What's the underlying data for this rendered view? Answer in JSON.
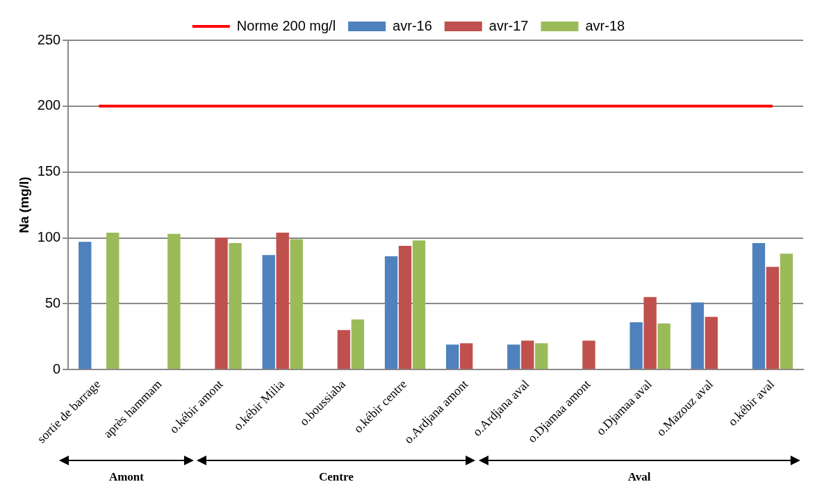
{
  "chart_data": {
    "type": "bar",
    "ylabel": "Na (mg/l)",
    "categories": [
      "sortie de barrage",
      "après hammam",
      "o.kébir amont",
      "o.kébir Milia",
      "o.boussiaba",
      "o.kébir centre",
      "o.Ardjana amont",
      "o.Ardjana aval",
      "o.Djamaa amont",
      "o.Djamaa aval",
      "o.Mazouz aval",
      "o.kébir aval"
    ],
    "series": [
      {
        "name": "avr-16",
        "color": "#4f81bd",
        "values": [
          97,
          null,
          null,
          87,
          null,
          86,
          19,
          19,
          null,
          36,
          51,
          96
        ]
      },
      {
        "name": "avr-17",
        "color": "#c0504d",
        "values": [
          null,
          null,
          100,
          104,
          30,
          94,
          20,
          22,
          22,
          55,
          40,
          78
        ]
      },
      {
        "name": "avr-18",
        "color": "#9bbb59",
        "values": [
          104,
          103,
          96,
          99,
          38,
          98,
          null,
          20,
          null,
          35,
          null,
          88
        ]
      },
      {
        "name": "Norme 200 mg/l",
        "type": "line",
        "color": "#ff0000",
        "marker": "none",
        "values": [
          200,
          200,
          200,
          200,
          200,
          200,
          200,
          200,
          200,
          200,
          200,
          200
        ]
      }
    ],
    "ylim": [
      0,
      250
    ],
    "yticks": [
      0,
      50,
      100,
      150,
      200,
      250
    ],
    "grid": "y",
    "legend": "top",
    "annotations": [
      "Amont",
      "Centre",
      "Aval"
    ]
  }
}
